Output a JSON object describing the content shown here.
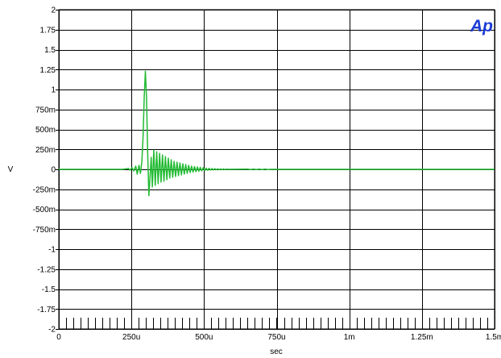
{
  "chart_data": {
    "type": "line",
    "title": "",
    "xlabel": "sec",
    "ylabel": "V",
    "x_unit": "s",
    "y_unit": "V",
    "xlim": [
      0,
      0.0015
    ],
    "ylim": [
      -2,
      2
    ],
    "grid": true,
    "legend": "none",
    "x_ticks": [
      {
        "value": 0,
        "label": "0"
      },
      {
        "value": 0.00025,
        "label": "250u"
      },
      {
        "value": 0.0005,
        "label": "500u"
      },
      {
        "value": 0.00075,
        "label": "750u"
      },
      {
        "value": 0.001,
        "label": "1m"
      },
      {
        "value": 0.00125,
        "label": "1.25m"
      },
      {
        "value": 0.0015,
        "label": "1.5m"
      }
    ],
    "y_ticks": [
      {
        "value": 2,
        "label": "2"
      },
      {
        "value": 1.75,
        "label": "1.75"
      },
      {
        "value": 1.5,
        "label": "1.5"
      },
      {
        "value": 1.25,
        "label": "1.25"
      },
      {
        "value": 1,
        "label": "1"
      },
      {
        "value": 0.75,
        "label": "750m"
      },
      {
        "value": 0.5,
        "label": "500m"
      },
      {
        "value": 0.25,
        "label": "250m"
      },
      {
        "value": 0,
        "label": "0"
      },
      {
        "value": -0.25,
        "label": "-250m"
      },
      {
        "value": -0.5,
        "label": "-500m"
      },
      {
        "value": -0.75,
        "label": "-750m"
      },
      {
        "value": -1,
        "label": "-1"
      },
      {
        "value": -1.25,
        "label": "-1.25"
      },
      {
        "value": -1.5,
        "label": "-1.5"
      },
      {
        "value": -1.75,
        "label": "-1.75"
      },
      {
        "value": -2,
        "label": "-2"
      }
    ],
    "series": [
      {
        "color": "#22bb33",
        "points": [
          [
            0,
            0
          ],
          [
            0.00022,
            0
          ],
          [
            0.00024,
            0.01
          ],
          [
            0.000245,
            -0.01
          ],
          [
            0.000252,
            0.02
          ],
          [
            0.000258,
            -0.02
          ],
          [
            0.000265,
            0.04
          ],
          [
            0.00027,
            -0.06
          ],
          [
            0.000276,
            0.05
          ],
          [
            0.000281,
            -0.05
          ],
          [
            0.000286,
            0.1
          ],
          [
            0.00029,
            0.4
          ],
          [
            0.000294,
            0.9
          ],
          [
            0.000298,
            1.23
          ],
          [
            0.000302,
            0.9
          ],
          [
            0.000306,
            0.2
          ],
          [
            0.00031,
            -0.33
          ],
          [
            0.000314,
            -0.1
          ],
          [
            0.000318,
            0.15
          ],
          [
            0.000322,
            -0.22
          ],
          [
            0.000327,
            0.24
          ],
          [
            0.000332,
            -0.2
          ],
          [
            0.000337,
            0.22
          ],
          [
            0.000342,
            -0.18
          ],
          [
            0.000347,
            0.2
          ],
          [
            0.000352,
            -0.16
          ],
          [
            0.000357,
            0.18
          ],
          [
            0.000362,
            -0.15
          ],
          [
            0.000367,
            0.16
          ],
          [
            0.000372,
            -0.13
          ],
          [
            0.000377,
            0.14
          ],
          [
            0.000382,
            -0.11
          ],
          [
            0.000387,
            0.12
          ],
          [
            0.000392,
            -0.1
          ],
          [
            0.000397,
            0.1
          ],
          [
            0.000402,
            -0.09
          ],
          [
            0.000407,
            0.09
          ],
          [
            0.000412,
            -0.08
          ],
          [
            0.000417,
            0.08
          ],
          [
            0.000422,
            -0.07
          ],
          [
            0.000427,
            0.07
          ],
          [
            0.000432,
            -0.06
          ],
          [
            0.000437,
            0.06
          ],
          [
            0.000442,
            -0.05
          ],
          [
            0.000447,
            0.05
          ],
          [
            0.000452,
            -0.04
          ],
          [
            0.000457,
            0.04
          ],
          [
            0.000462,
            -0.035
          ],
          [
            0.000467,
            0.035
          ],
          [
            0.000472,
            -0.03
          ],
          [
            0.000477,
            0.03
          ],
          [
            0.000482,
            -0.025
          ],
          [
            0.000487,
            0.025
          ],
          [
            0.000492,
            -0.02
          ],
          [
            0.000497,
            0.02
          ],
          [
            0.000502,
            -0.015
          ],
          [
            0.000507,
            0.015
          ],
          [
            0.000512,
            -0.012
          ],
          [
            0.000517,
            0.012
          ],
          [
            0.000522,
            -0.01
          ],
          [
            0.000527,
            0.01
          ],
          [
            0.000532,
            -0.008
          ],
          [
            0.000537,
            0.008
          ],
          [
            0.000542,
            -0.006
          ],
          [
            0.000547,
            0.006
          ],
          [
            0.000552,
            -0.005
          ],
          [
            0.000557,
            0.005
          ],
          [
            0.000562,
            -0.004
          ],
          [
            0.000567,
            0.004
          ],
          [
            0.000572,
            -0.003
          ],
          [
            0.000577,
            0.003
          ],
          [
            0.00058,
            0
          ],
          [
            0.00065,
            0.003
          ],
          [
            0.00066,
            -0.003
          ],
          [
            0.00067,
            0.003
          ],
          [
            0.00068,
            -0.003
          ],
          [
            0.00069,
            0.002
          ],
          [
            0.0007,
            -0.002
          ],
          [
            0.00071,
            0.002
          ],
          [
            0.00072,
            -0.002
          ],
          [
            0.00073,
            0
          ],
          [
            0.0015,
            0
          ]
        ]
      }
    ]
  },
  "logo": {
    "text": "Ap",
    "color": "#1a3bd6"
  }
}
